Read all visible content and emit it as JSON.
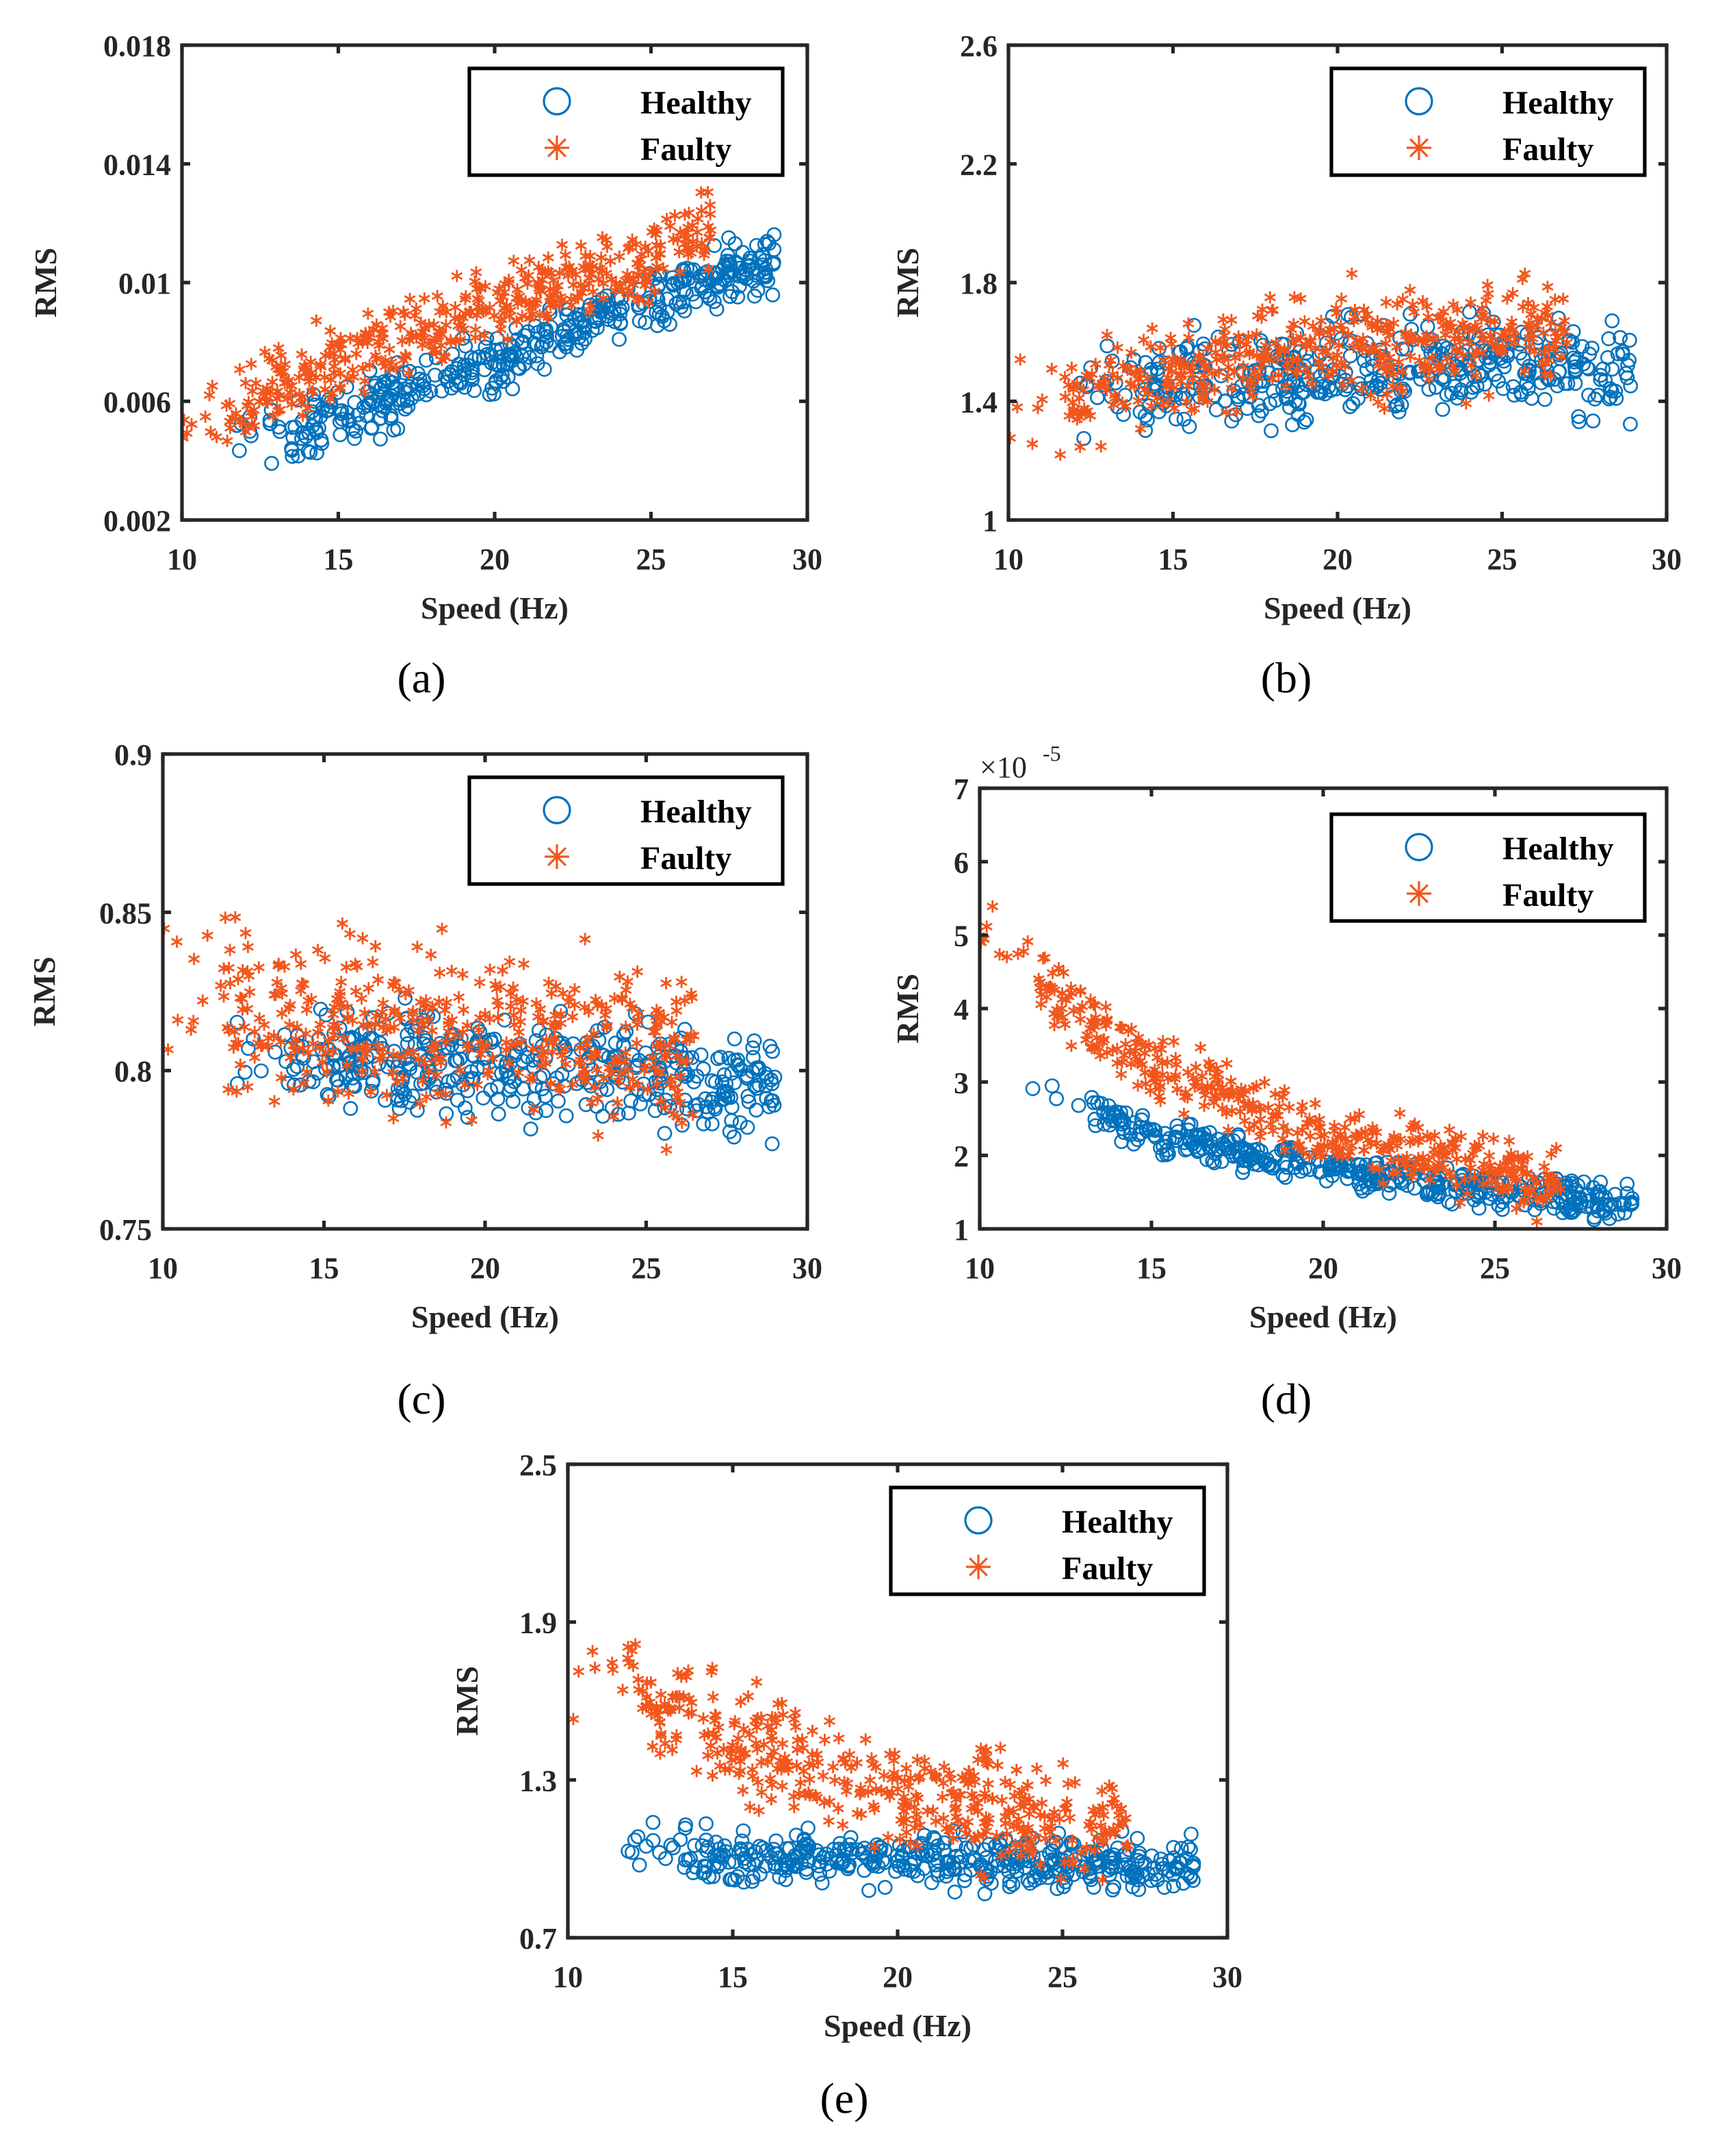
{
  "colors": {
    "healthy": "#0072BD",
    "faulty": "#F2561D",
    "axes": "#262626"
  },
  "legend": {
    "healthy": "Healthy",
    "faulty": "Faulty"
  },
  "chart_data": [
    {
      "id": "a",
      "type": "scatter",
      "caption": "(a)",
      "xlabel": "Speed (Hz)",
      "ylabel": "RMS",
      "multiplier": "",
      "xlim": [
        10,
        30
      ],
      "ylim": [
        0.002,
        0.018
      ],
      "xticks": [
        10,
        15,
        20,
        25,
        30
      ],
      "xtick_labels": [
        "10",
        "15",
        "20",
        "25",
        "30"
      ],
      "yticks": [
        0.002,
        0.006,
        0.01,
        0.014,
        0.018
      ],
      "ytick_labels": [
        "0.002",
        "0.006",
        "0.01",
        "0.014",
        "0.018"
      ],
      "legend_position": "top-right",
      "series": [
        {
          "name": "Healthy",
          "marker": "circle",
          "count": 420,
          "x_range": [
            11.7,
            29
          ],
          "trend": [
            [
              11.7,
              0.0045
            ],
            [
              15,
              0.0055
            ],
            [
              20,
              0.0072
            ],
            [
              25,
              0.0095
            ],
            [
              29,
              0.0108
            ]
          ],
          "spread": 0.0007
        },
        {
          "name": "Faulty",
          "marker": "asterisk",
          "count": 420,
          "x_range": [
            10,
            27
          ],
          "trend": [
            [
              10,
              0.005
            ],
            [
              15,
              0.0074
            ],
            [
              20,
              0.0092
            ],
            [
              25,
              0.0108
            ],
            [
              27,
              0.012
            ]
          ],
          "spread": 0.0009
        }
      ]
    },
    {
      "id": "b",
      "type": "scatter",
      "caption": "(b)",
      "xlabel": "Speed (Hz)",
      "ylabel": "RMS",
      "multiplier": "",
      "xlim": [
        10,
        30
      ],
      "ylim": [
        1,
        2.6
      ],
      "xticks": [
        10,
        15,
        20,
        25,
        30
      ],
      "xtick_labels": [
        "10",
        "15",
        "20",
        "25",
        "30"
      ],
      "yticks": [
        1,
        1.4,
        1.8,
        2.2,
        2.6
      ],
      "ytick_labels": [
        "1",
        "1.4",
        "1.8",
        "2.2",
        "2.6"
      ],
      "legend_position": "top-right",
      "series": [
        {
          "name": "Healthy",
          "marker": "circle",
          "count": 420,
          "x_range": [
            12,
            29
          ],
          "trend": [
            [
              12,
              1.42
            ],
            [
              15,
              1.45
            ],
            [
              20,
              1.5
            ],
            [
              25,
              1.55
            ],
            [
              29,
              1.5
            ]
          ],
          "spread": 0.11
        },
        {
          "name": "Faulty",
          "marker": "asterisk",
          "count": 420,
          "x_range": [
            10,
            27
          ],
          "trend": [
            [
              10,
              1.35
            ],
            [
              15,
              1.5
            ],
            [
              20,
              1.6
            ],
            [
              25,
              1.62
            ],
            [
              27,
              1.65
            ]
          ],
          "spread": 0.12
        }
      ]
    },
    {
      "id": "c",
      "type": "scatter",
      "caption": "(c)",
      "xlabel": "Speed (Hz)",
      "ylabel": "RMS",
      "multiplier": "",
      "xlim": [
        10,
        30
      ],
      "ylim": [
        0.75,
        0.9
      ],
      "xticks": [
        10,
        15,
        20,
        25,
        30
      ],
      "xtick_labels": [
        "10",
        "15",
        "20",
        "25",
        "30"
      ],
      "yticks": [
        0.75,
        0.8,
        0.85,
        0.9
      ],
      "ytick_labels": [
        "0.75",
        "0.8",
        "0.85",
        "0.9"
      ],
      "legend_position": "top-right",
      "series": [
        {
          "name": "Healthy",
          "marker": "circle",
          "count": 420,
          "x_range": [
            12,
            29
          ],
          "trend": [
            [
              12,
              0.8
            ],
            [
              20,
              0.802
            ],
            [
              25,
              0.8
            ],
            [
              29,
              0.795
            ]
          ],
          "spread": 0.012
        },
        {
          "name": "Faulty",
          "marker": "asterisk",
          "count": 420,
          "x_range": [
            10,
            26.5
          ],
          "trend": [
            [
              10,
              0.83
            ],
            [
              15,
              0.815
            ],
            [
              20,
              0.812
            ],
            [
              26.5,
              0.805
            ]
          ],
          "spread": 0.018
        }
      ]
    },
    {
      "id": "d",
      "type": "scatter",
      "caption": "(d)",
      "xlabel": "Speed (Hz)",
      "ylabel": "RMS",
      "multiplier": "×10",
      "multiplier_exp": "-5",
      "xlim": [
        10,
        30
      ],
      "ylim": [
        1,
        7
      ],
      "xticks": [
        10,
        15,
        20,
        25,
        30
      ],
      "xtick_labels": [
        "10",
        "15",
        "20",
        "25",
        "30"
      ],
      "yticks": [
        1,
        2,
        3,
        4,
        5,
        6,
        7
      ],
      "ytick_labels": [
        "1",
        "2",
        "3",
        "4",
        "5",
        "6",
        "7"
      ],
      "legend_position": "top-right",
      "series": [
        {
          "name": "Healthy",
          "marker": "circle",
          "count": 420,
          "x_range": [
            11.5,
            29
          ],
          "trend": [
            [
              11.5,
              2.9
            ],
            [
              15,
              2.3
            ],
            [
              20,
              1.8
            ],
            [
              25,
              1.55
            ],
            [
              29,
              1.32
            ]
          ],
          "spread": 0.17
        },
        {
          "name": "Faulty",
          "marker": "asterisk",
          "count": 420,
          "x_range": [
            10,
            27
          ],
          "trend": [
            [
              10,
              5.2
            ],
            [
              12,
              4.2
            ],
            [
              15,
              3.2
            ],
            [
              20,
              2.3
            ],
            [
              25,
              1.8
            ],
            [
              27,
              1.6
            ]
          ],
          "spread": 0.3
        }
      ]
    },
    {
      "id": "e",
      "type": "scatter",
      "caption": "(e)",
      "xlabel": "Speed (Hz)",
      "ylabel": "RMS",
      "multiplier": "",
      "xlim": [
        10,
        30
      ],
      "ylim": [
        0.7,
        2.5
      ],
      "xticks": [
        10,
        15,
        20,
        25,
        30
      ],
      "xtick_labels": [
        "10",
        "15",
        "20",
        "25",
        "30"
      ],
      "yticks": [
        0.7,
        1.3,
        1.9,
        2.5
      ],
      "ytick_labels": [
        "0.7",
        "1.3",
        "1.9",
        "2.5"
      ],
      "legend_position": "top-right",
      "series": [
        {
          "name": "Healthy",
          "marker": "circle",
          "count": 420,
          "x_range": [
            11.8,
            29
          ],
          "trend": [
            [
              11.8,
              1.05
            ],
            [
              15,
              1.0
            ],
            [
              20,
              1.0
            ],
            [
              25,
              0.99
            ],
            [
              29,
              0.98
            ]
          ],
          "spread": 0.07
        },
        {
          "name": "Faulty",
          "marker": "asterisk",
          "count": 420,
          "x_range": [
            10,
            27
          ],
          "trend": [
            [
              10,
              1.7
            ],
            [
              15,
              1.45
            ],
            [
              20,
              1.25
            ],
            [
              25,
              1.15
            ],
            [
              27,
              1.14
            ]
          ],
          "spread": 0.14
        }
      ]
    }
  ]
}
